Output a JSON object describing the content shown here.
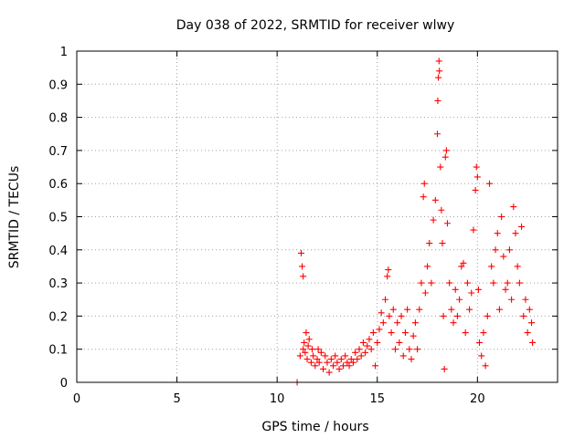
{
  "chart_data": {
    "type": "scatter",
    "title": "Day 038 of 2022, SRMTID for receiver wlwy",
    "xlabel": "GPS time / hours",
    "ylabel": "SRMTID / TECUs",
    "xlim": [
      0,
      24
    ],
    "ylim": [
      0,
      1
    ],
    "x_ticks": [
      "0",
      "5",
      "10",
      "15",
      "20"
    ],
    "y_ticks": [
      "0",
      "0.1",
      "0.2",
      "0.3",
      "0.4",
      "0.5",
      "0.6",
      "0.7",
      "0.8",
      "0.9",
      "1"
    ],
    "grid": true,
    "marker": "+",
    "color": "#ff0000",
    "series": [
      {
        "name": "SRMTID",
        "points": [
          [
            11.0,
            0.0
          ],
          [
            11.15,
            0.08
          ],
          [
            11.2,
            0.39
          ],
          [
            11.25,
            0.35
          ],
          [
            11.3,
            0.32
          ],
          [
            11.3,
            0.1
          ],
          [
            11.35,
            0.12
          ],
          [
            11.4,
            0.09
          ],
          [
            11.45,
            0.15
          ],
          [
            11.5,
            0.07
          ],
          [
            11.55,
            0.11
          ],
          [
            11.6,
            0.13
          ],
          [
            11.7,
            0.06
          ],
          [
            11.75,
            0.1
          ],
          [
            11.8,
            0.08
          ],
          [
            11.9,
            0.05
          ],
          [
            12.0,
            0.07
          ],
          [
            12.05,
            0.1
          ],
          [
            12.1,
            0.06
          ],
          [
            12.2,
            0.09
          ],
          [
            12.3,
            0.04
          ],
          [
            12.4,
            0.08
          ],
          [
            12.5,
            0.06
          ],
          [
            12.6,
            0.03
          ],
          [
            12.7,
            0.07
          ],
          [
            12.8,
            0.05
          ],
          [
            12.9,
            0.08
          ],
          [
            13.0,
            0.06
          ],
          [
            13.1,
            0.04
          ],
          [
            13.2,
            0.07
          ],
          [
            13.3,
            0.05
          ],
          [
            13.4,
            0.08
          ],
          [
            13.5,
            0.06
          ],
          [
            13.6,
            0.05
          ],
          [
            13.7,
            0.07
          ],
          [
            13.8,
            0.06
          ],
          [
            13.9,
            0.09
          ],
          [
            14.0,
            0.07
          ],
          [
            14.1,
            0.1
          ],
          [
            14.2,
            0.08
          ],
          [
            14.3,
            0.12
          ],
          [
            14.4,
            0.09
          ],
          [
            14.5,
            0.11
          ],
          [
            14.6,
            0.13
          ],
          [
            14.7,
            0.1
          ],
          [
            14.8,
            0.15
          ],
          [
            14.9,
            0.05
          ],
          [
            15.0,
            0.12
          ],
          [
            15.1,
            0.16
          ],
          [
            15.2,
            0.21
          ],
          [
            15.3,
            0.18
          ],
          [
            15.4,
            0.25
          ],
          [
            15.5,
            0.32
          ],
          [
            15.55,
            0.34
          ],
          [
            15.6,
            0.2
          ],
          [
            15.7,
            0.15
          ],
          [
            15.8,
            0.22
          ],
          [
            15.9,
            0.1
          ],
          [
            16.0,
            0.18
          ],
          [
            16.1,
            0.12
          ],
          [
            16.2,
            0.2
          ],
          [
            16.3,
            0.08
          ],
          [
            16.4,
            0.15
          ],
          [
            16.5,
            0.22
          ],
          [
            16.6,
            0.1
          ],
          [
            16.7,
            0.07
          ],
          [
            16.8,
            0.14
          ],
          [
            16.9,
            0.18
          ],
          [
            17.0,
            0.1
          ],
          [
            17.1,
            0.22
          ],
          [
            17.2,
            0.3
          ],
          [
            17.3,
            0.56
          ],
          [
            17.35,
            0.6
          ],
          [
            17.4,
            0.27
          ],
          [
            17.5,
            0.35
          ],
          [
            17.6,
            0.42
          ],
          [
            17.7,
            0.3
          ],
          [
            17.8,
            0.49
          ],
          [
            17.9,
            0.55
          ],
          [
            18.0,
            0.75
          ],
          [
            18.02,
            0.85
          ],
          [
            18.05,
            0.92
          ],
          [
            18.08,
            0.97
          ],
          [
            18.1,
            0.94
          ],
          [
            18.15,
            0.65
          ],
          [
            18.2,
            0.52
          ],
          [
            18.25,
            0.42
          ],
          [
            18.3,
            0.2
          ],
          [
            18.35,
            0.04
          ],
          [
            18.4,
            0.68
          ],
          [
            18.45,
            0.7
          ],
          [
            18.5,
            0.48
          ],
          [
            18.6,
            0.3
          ],
          [
            18.7,
            0.22
          ],
          [
            18.8,
            0.18
          ],
          [
            18.9,
            0.28
          ],
          [
            19.0,
            0.2
          ],
          [
            19.1,
            0.25
          ],
          [
            19.2,
            0.35
          ],
          [
            19.3,
            0.36
          ],
          [
            19.4,
            0.15
          ],
          [
            19.5,
            0.3
          ],
          [
            19.6,
            0.22
          ],
          [
            19.7,
            0.27
          ],
          [
            19.8,
            0.46
          ],
          [
            19.9,
            0.58
          ],
          [
            19.95,
            0.65
          ],
          [
            20.0,
            0.62
          ],
          [
            20.05,
            0.28
          ],
          [
            20.1,
            0.12
          ],
          [
            20.2,
            0.08
          ],
          [
            20.3,
            0.15
          ],
          [
            20.4,
            0.05
          ],
          [
            20.5,
            0.2
          ],
          [
            20.6,
            0.6
          ],
          [
            20.7,
            0.35
          ],
          [
            20.8,
            0.3
          ],
          [
            20.9,
            0.4
          ],
          [
            21.0,
            0.45
          ],
          [
            21.1,
            0.22
          ],
          [
            21.2,
            0.5
          ],
          [
            21.3,
            0.38
          ],
          [
            21.4,
            0.28
          ],
          [
            21.5,
            0.3
          ],
          [
            21.6,
            0.4
          ],
          [
            21.7,
            0.25
          ],
          [
            21.8,
            0.53
          ],
          [
            21.9,
            0.45
          ],
          [
            22.0,
            0.35
          ],
          [
            22.1,
            0.3
          ],
          [
            22.2,
            0.47
          ],
          [
            22.3,
            0.2
          ],
          [
            22.4,
            0.25
          ],
          [
            22.5,
            0.15
          ],
          [
            22.6,
            0.22
          ],
          [
            22.7,
            0.18
          ],
          [
            22.75,
            0.12
          ]
        ]
      }
    ]
  }
}
